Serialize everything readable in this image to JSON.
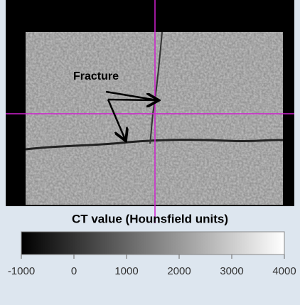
{
  "image": {
    "annotation": "Fracture"
  },
  "colorbar": {
    "title": "CT value (Hounsfield units)",
    "lim": [
      -1000,
      4000
    ],
    "ticks": [
      -1000,
      0,
      1000,
      2000,
      3000,
      4000
    ]
  }
}
